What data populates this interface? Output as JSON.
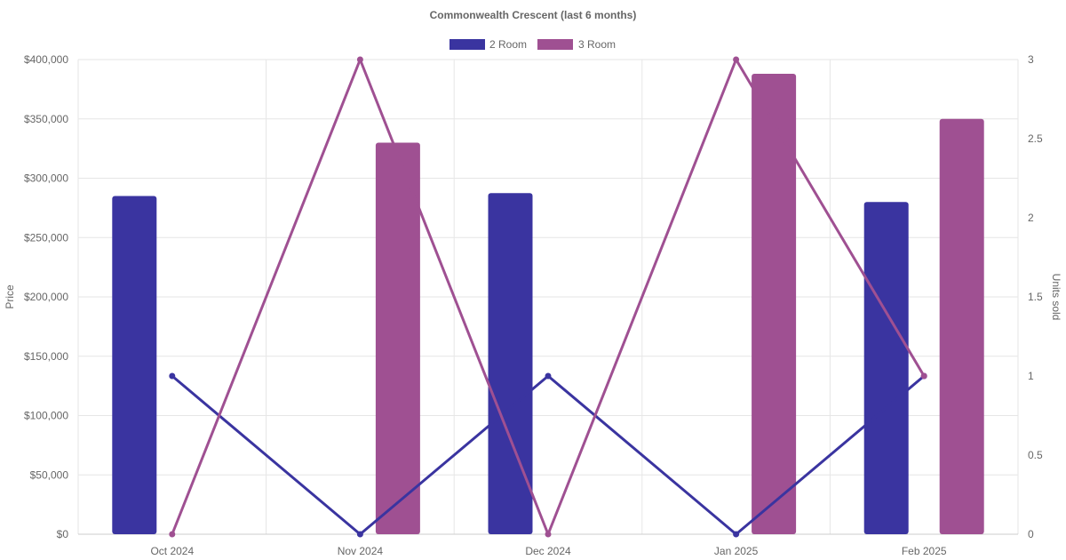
{
  "chart_data": {
    "type": "bar",
    "title": "Commonwealth Crescent (last 6 months)",
    "categories": [
      "Oct 2024",
      "Nov 2024",
      "Dec 2024",
      "Jan 2025",
      "Feb 2025"
    ],
    "series": [
      {
        "name": "2 Room",
        "type": "bar",
        "axis": "left",
        "color": "#3a34a0",
        "values": [
          285000,
          0,
          287500,
          0,
          280000
        ]
      },
      {
        "name": "3 Room",
        "type": "bar",
        "axis": "left",
        "color": "#9f5092",
        "values": [
          0,
          330000,
          0,
          388000,
          350000
        ]
      },
      {
        "type": "line",
        "axis": "right",
        "color": "#3a34a0",
        "values": [
          1,
          0,
          1,
          0,
          1
        ]
      },
      {
        "type": "line",
        "axis": "right",
        "color": "#9f5092",
        "values": [
          0,
          3,
          0,
          3,
          1
        ]
      }
    ],
    "ylabel": "Price",
    "y2label": "Units sold",
    "ylim": [
      0,
      400000
    ],
    "y2lim": [
      0,
      3
    ],
    "yticks": [
      "$0",
      "$50,000",
      "$100,000",
      "$150,000",
      "$200,000",
      "$250,000",
      "$300,000",
      "$350,000",
      "$400,000"
    ],
    "y2ticks": [
      "0",
      "0.5",
      "1",
      "1.5",
      "2",
      "2.5",
      "3"
    ],
    "legend": "top",
    "grid": true
  }
}
